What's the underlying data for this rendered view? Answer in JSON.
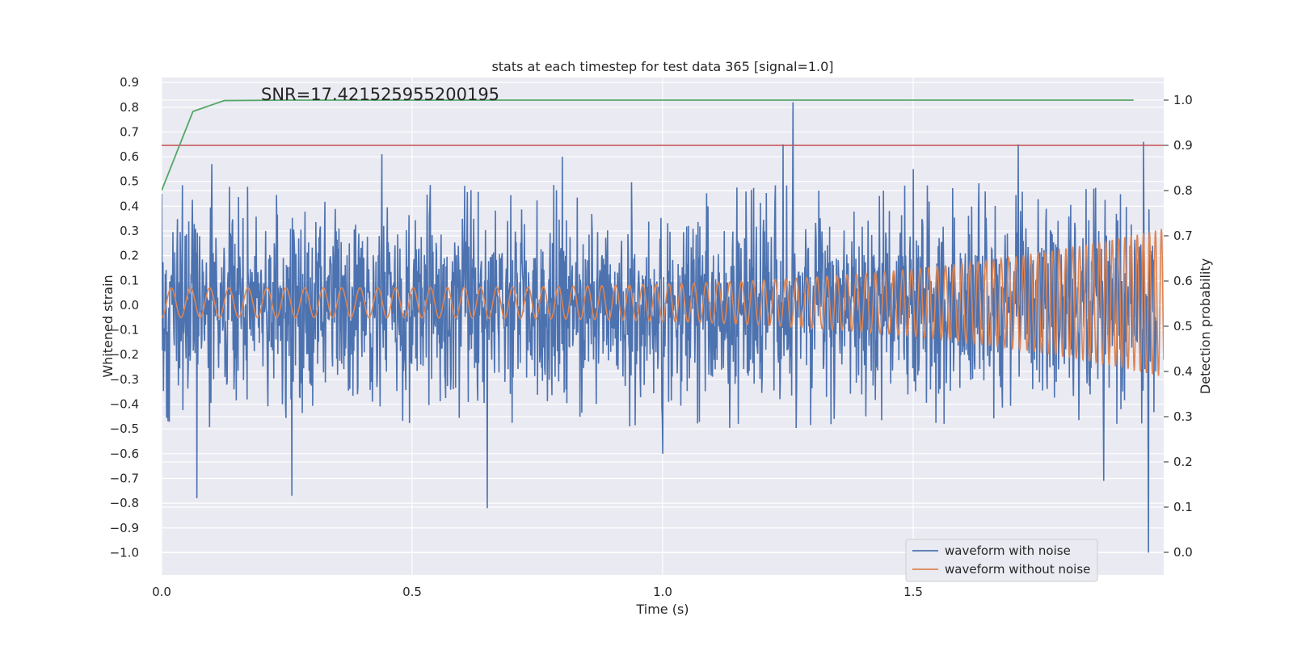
{
  "chart_data": {
    "type": "line",
    "title": "stats at each timestep for test data 365 [signal=1.0]",
    "xlabel": "Time (s)",
    "ylabel": "Whitened strain",
    "y2label": "Detection probability",
    "xlim": [
      0.0,
      2.0
    ],
    "ylim": [
      -1.09,
      0.92
    ],
    "y2lim": [
      -0.05,
      1.05
    ],
    "x_ticks": [
      "0.0",
      "0.5",
      "1.0",
      "1.5"
    ],
    "y_ticks": [
      "0.9",
      "0.8",
      "0.7",
      "0.6",
      "0.5",
      "0.4",
      "0.3",
      "0.2",
      "0.1",
      "0.0",
      "−0.1",
      "−0.2",
      "−0.3",
      "−0.4",
      "−0.5",
      "−0.6",
      "−0.7",
      "−0.8",
      "−0.9",
      "−1.0"
    ],
    "y2_ticks": [
      "1.0",
      "0.9",
      "0.8",
      "0.7",
      "0.6",
      "0.5",
      "0.4",
      "0.3",
      "0.2",
      "0.1",
      "0.0"
    ],
    "grid": true,
    "legend_position": "lower-right",
    "annotation": "SNR=17.421525955200195",
    "series": [
      {
        "name": "waveform with noise",
        "color": "#4c72b0",
        "axis": "left",
        "description_points": {
          "x": [
            0.0,
            0.07,
            0.1,
            0.26,
            0.44,
            0.65,
            0.8,
            1.0,
            1.24,
            1.26,
            1.5,
            1.71,
            1.88,
            1.96,
            1.97
          ],
          "y": [
            0.45,
            -0.78,
            0.57,
            -0.77,
            0.61,
            -0.82,
            0.6,
            -0.6,
            0.65,
            0.82,
            0.55,
            0.65,
            -0.71,
            0.66,
            -1.0
          ]
        }
      },
      {
        "name": "waveform without noise",
        "color": "#dd8452",
        "axis": "left",
        "chirp": {
          "t_end": 2.0,
          "amplitude_start": 0.06,
          "amplitude_end": 0.3,
          "frequency_start_hz": 26,
          "frequency_end_hz": 85
        }
      },
      {
        "name": "",
        "color": "#55a868",
        "axis": "right",
        "x": [
          0.0,
          0.0625,
          0.125,
          0.25,
          0.5,
          1.0,
          1.5,
          1.94
        ],
        "y": [
          0.8,
          0.975,
          0.999,
          1.0,
          1.0,
          1.0,
          1.0,
          1.0
        ]
      },
      {
        "name": "",
        "color": "#c44e52",
        "axis": "right",
        "x": [
          0.0,
          2.0
        ],
        "y": [
          0.9,
          0.9
        ]
      }
    ]
  }
}
